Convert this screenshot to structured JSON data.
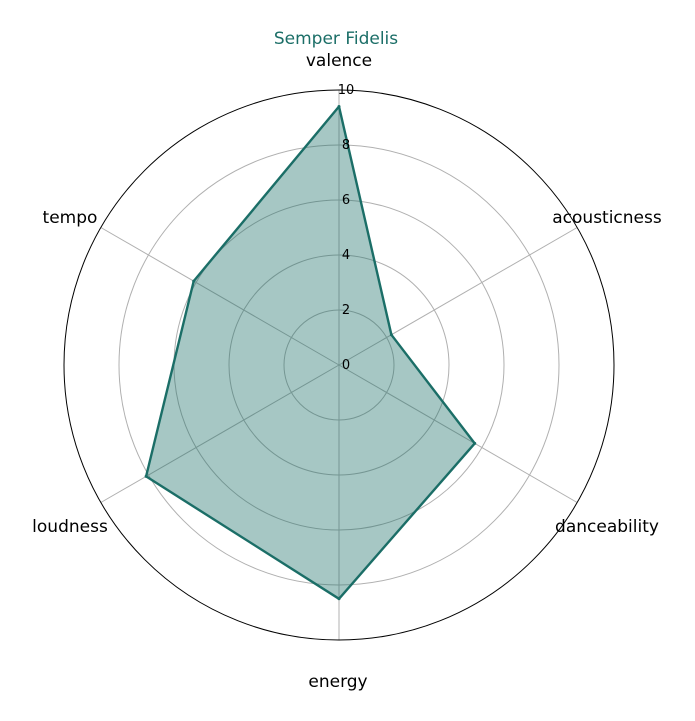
{
  "chart_data": {
    "type": "radar",
    "title": "Semper Fidelis",
    "axes": [
      "valence",
      "acousticness",
      "danceability",
      "energy",
      "loudness",
      "tempo"
    ],
    "series": [
      {
        "values": [
          9.4,
          2.2,
          5.7,
          8.5,
          8.1,
          6.1
        ],
        "color": "#1b6e67",
        "fill": "#1b6e67"
      }
    ],
    "rlim": [
      0,
      10
    ],
    "rticks": [
      "0",
      "2",
      "4",
      "6",
      "8",
      "10"
    ],
    "grid": true,
    "title_color": "#1b6e67"
  }
}
